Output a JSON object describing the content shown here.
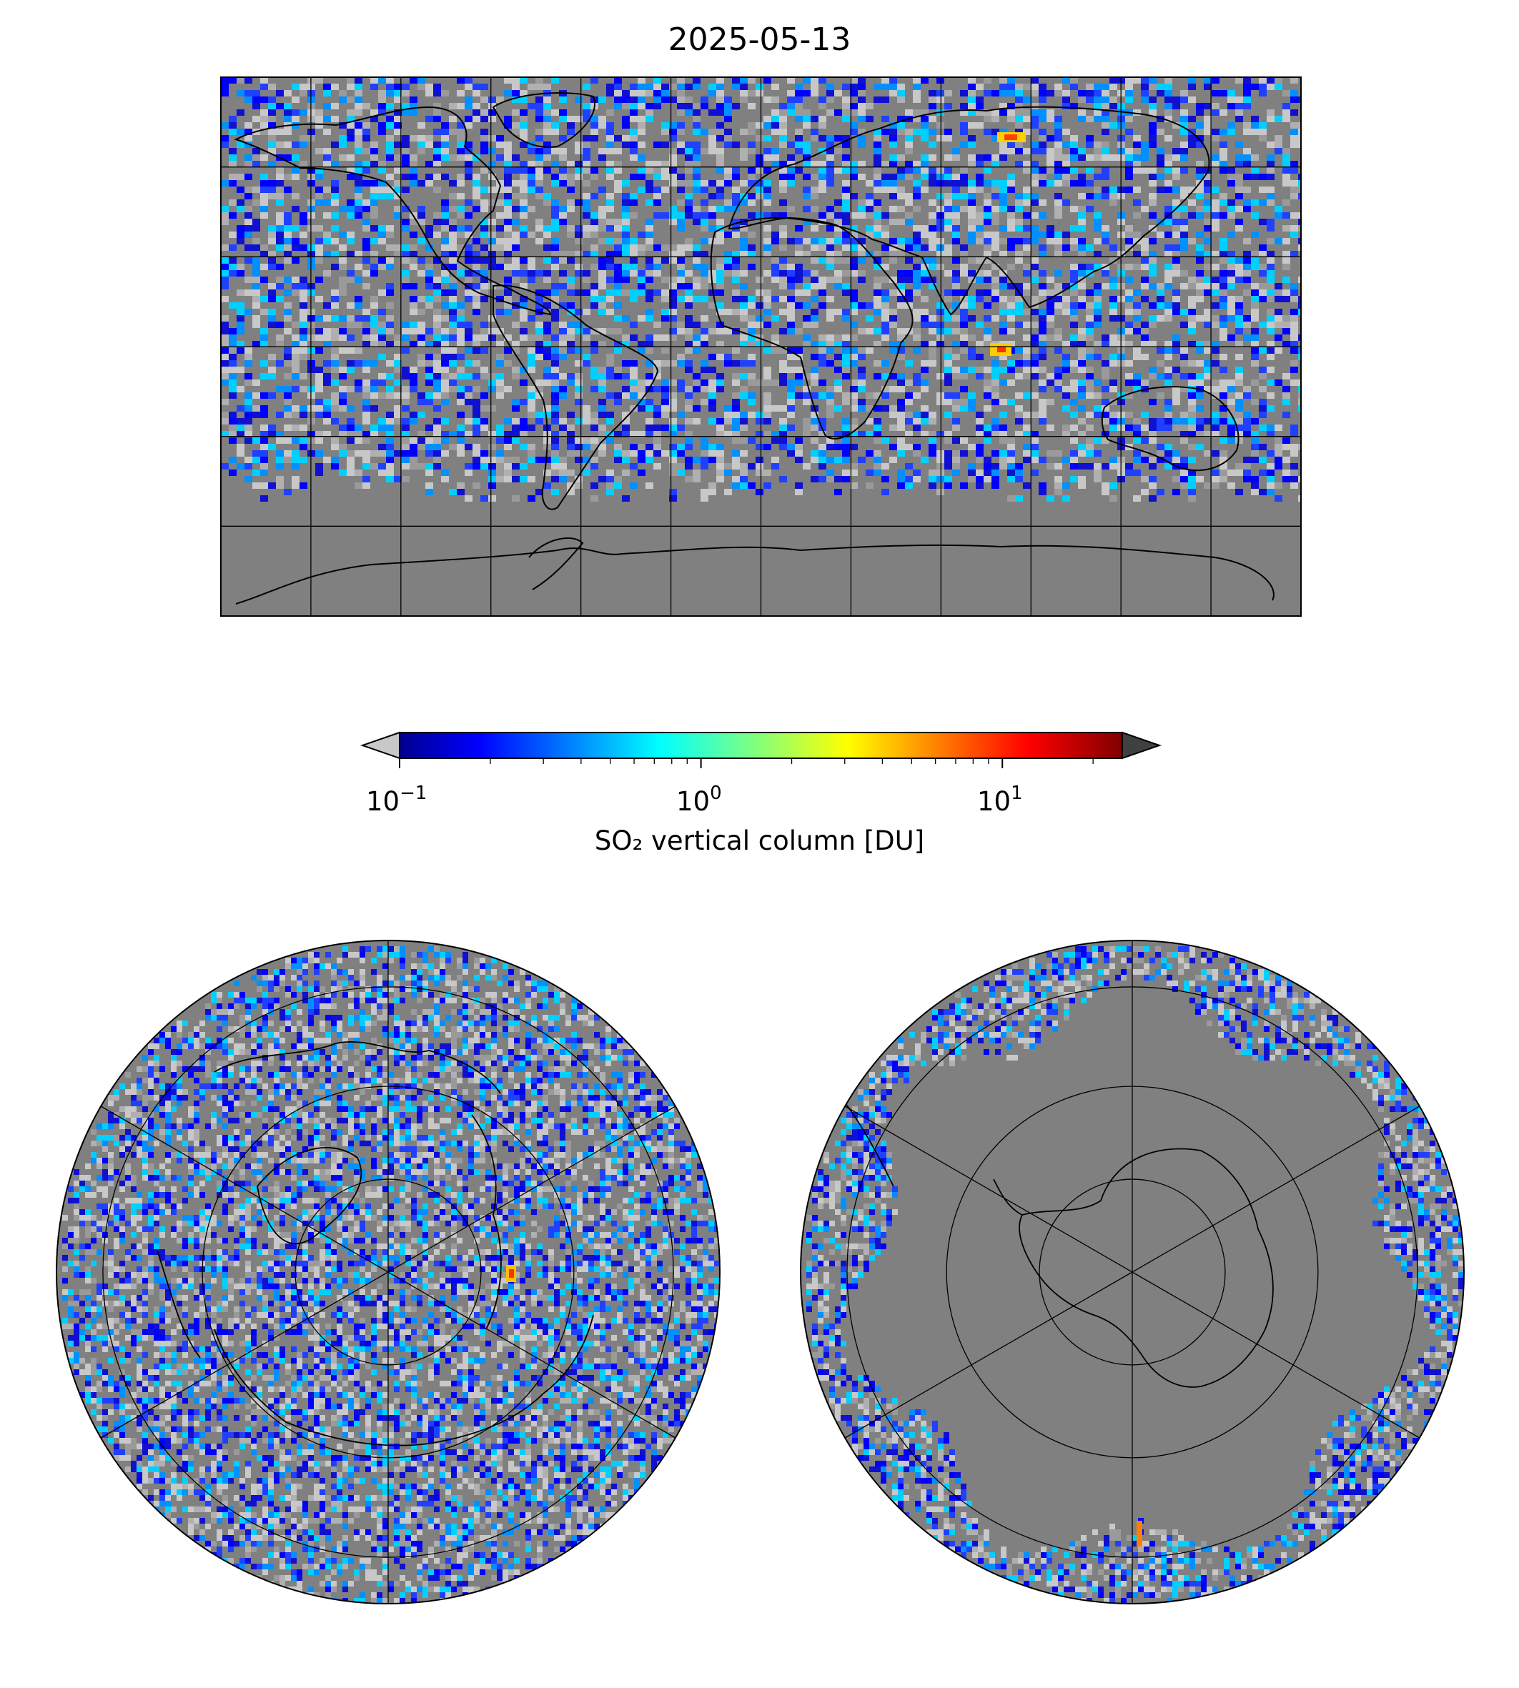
{
  "figure": {
    "title": "2025-05-13",
    "colorbar": {
      "label": "SO₂ vertical column [DU]",
      "scale": "log",
      "range": [
        0.1,
        25
      ],
      "ticks": [
        {
          "base": "10",
          "exp": "−1",
          "value": 0.1
        },
        {
          "base": "10",
          "exp": "0",
          "value": 1
        },
        {
          "base": "10",
          "exp": "1",
          "value": 10
        }
      ],
      "colormap": "jet",
      "extend": "both",
      "under_color": "#c8c8c8",
      "over_color": "#404040"
    },
    "colors": {
      "no_data": "#808080",
      "background_low": "#b4b4b4",
      "coastline": "#000000"
    },
    "maps": [
      {
        "id": "global",
        "projection": "plate-carree",
        "gridlines": "30deg"
      },
      {
        "id": "north-polar",
        "projection": "north-polar-stereographic"
      },
      {
        "id": "south-polar",
        "projection": "south-polar-stereographic"
      }
    ]
  }
}
